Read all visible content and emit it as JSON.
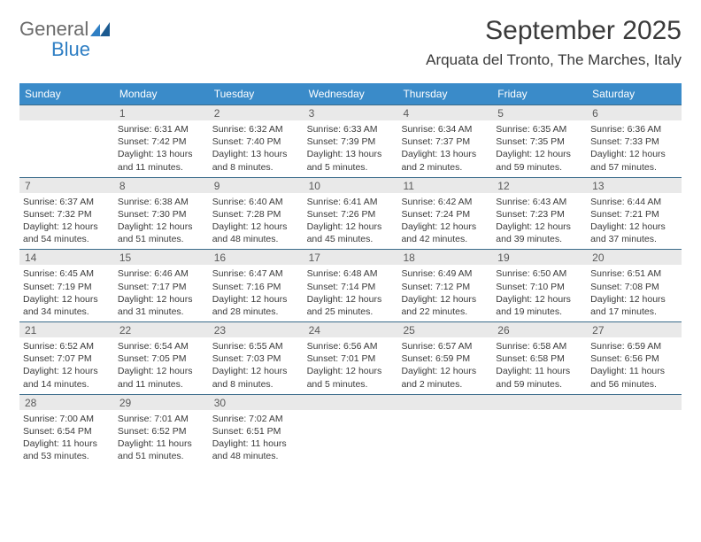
{
  "logo": {
    "line1": "General",
    "line2": "Blue"
  },
  "title": "September 2025",
  "subtitle": "Arquata del Tronto, The Marches, Italy",
  "colors": {
    "header_bg": "#3a8bc9",
    "header_text": "#ffffff",
    "daynum_bg": "#e9e9e9",
    "daynum_border": "#3a6b8a",
    "body_text": "#3a3a3a",
    "logo_gray": "#6b6b6b",
    "logo_blue": "#2f7fc4"
  },
  "dow": [
    "Sunday",
    "Monday",
    "Tuesday",
    "Wednesday",
    "Thursday",
    "Friday",
    "Saturday"
  ],
  "weeks": [
    {
      "nums": [
        "",
        "1",
        "2",
        "3",
        "4",
        "5",
        "6"
      ],
      "cells": [
        {
          "empty": true
        },
        {
          "sunrise": "Sunrise: 6:31 AM",
          "sunset": "Sunset: 7:42 PM",
          "day1": "Daylight: 13 hours",
          "day2": "and 11 minutes."
        },
        {
          "sunrise": "Sunrise: 6:32 AM",
          "sunset": "Sunset: 7:40 PM",
          "day1": "Daylight: 13 hours",
          "day2": "and 8 minutes."
        },
        {
          "sunrise": "Sunrise: 6:33 AM",
          "sunset": "Sunset: 7:39 PM",
          "day1": "Daylight: 13 hours",
          "day2": "and 5 minutes."
        },
        {
          "sunrise": "Sunrise: 6:34 AM",
          "sunset": "Sunset: 7:37 PM",
          "day1": "Daylight: 13 hours",
          "day2": "and 2 minutes."
        },
        {
          "sunrise": "Sunrise: 6:35 AM",
          "sunset": "Sunset: 7:35 PM",
          "day1": "Daylight: 12 hours",
          "day2": "and 59 minutes."
        },
        {
          "sunrise": "Sunrise: 6:36 AM",
          "sunset": "Sunset: 7:33 PM",
          "day1": "Daylight: 12 hours",
          "day2": "and 57 minutes."
        }
      ]
    },
    {
      "nums": [
        "7",
        "8",
        "9",
        "10",
        "11",
        "12",
        "13"
      ],
      "cells": [
        {
          "sunrise": "Sunrise: 6:37 AM",
          "sunset": "Sunset: 7:32 PM",
          "day1": "Daylight: 12 hours",
          "day2": "and 54 minutes."
        },
        {
          "sunrise": "Sunrise: 6:38 AM",
          "sunset": "Sunset: 7:30 PM",
          "day1": "Daylight: 12 hours",
          "day2": "and 51 minutes."
        },
        {
          "sunrise": "Sunrise: 6:40 AM",
          "sunset": "Sunset: 7:28 PM",
          "day1": "Daylight: 12 hours",
          "day2": "and 48 minutes."
        },
        {
          "sunrise": "Sunrise: 6:41 AM",
          "sunset": "Sunset: 7:26 PM",
          "day1": "Daylight: 12 hours",
          "day2": "and 45 minutes."
        },
        {
          "sunrise": "Sunrise: 6:42 AM",
          "sunset": "Sunset: 7:24 PM",
          "day1": "Daylight: 12 hours",
          "day2": "and 42 minutes."
        },
        {
          "sunrise": "Sunrise: 6:43 AM",
          "sunset": "Sunset: 7:23 PM",
          "day1": "Daylight: 12 hours",
          "day2": "and 39 minutes."
        },
        {
          "sunrise": "Sunrise: 6:44 AM",
          "sunset": "Sunset: 7:21 PM",
          "day1": "Daylight: 12 hours",
          "day2": "and 37 minutes."
        }
      ]
    },
    {
      "nums": [
        "14",
        "15",
        "16",
        "17",
        "18",
        "19",
        "20"
      ],
      "cells": [
        {
          "sunrise": "Sunrise: 6:45 AM",
          "sunset": "Sunset: 7:19 PM",
          "day1": "Daylight: 12 hours",
          "day2": "and 34 minutes."
        },
        {
          "sunrise": "Sunrise: 6:46 AM",
          "sunset": "Sunset: 7:17 PM",
          "day1": "Daylight: 12 hours",
          "day2": "and 31 minutes."
        },
        {
          "sunrise": "Sunrise: 6:47 AM",
          "sunset": "Sunset: 7:16 PM",
          "day1": "Daylight: 12 hours",
          "day2": "and 28 minutes."
        },
        {
          "sunrise": "Sunrise: 6:48 AM",
          "sunset": "Sunset: 7:14 PM",
          "day1": "Daylight: 12 hours",
          "day2": "and 25 minutes."
        },
        {
          "sunrise": "Sunrise: 6:49 AM",
          "sunset": "Sunset: 7:12 PM",
          "day1": "Daylight: 12 hours",
          "day2": "and 22 minutes."
        },
        {
          "sunrise": "Sunrise: 6:50 AM",
          "sunset": "Sunset: 7:10 PM",
          "day1": "Daylight: 12 hours",
          "day2": "and 19 minutes."
        },
        {
          "sunrise": "Sunrise: 6:51 AM",
          "sunset": "Sunset: 7:08 PM",
          "day1": "Daylight: 12 hours",
          "day2": "and 17 minutes."
        }
      ]
    },
    {
      "nums": [
        "21",
        "22",
        "23",
        "24",
        "25",
        "26",
        "27"
      ],
      "cells": [
        {
          "sunrise": "Sunrise: 6:52 AM",
          "sunset": "Sunset: 7:07 PM",
          "day1": "Daylight: 12 hours",
          "day2": "and 14 minutes."
        },
        {
          "sunrise": "Sunrise: 6:54 AM",
          "sunset": "Sunset: 7:05 PM",
          "day1": "Daylight: 12 hours",
          "day2": "and 11 minutes."
        },
        {
          "sunrise": "Sunrise: 6:55 AM",
          "sunset": "Sunset: 7:03 PM",
          "day1": "Daylight: 12 hours",
          "day2": "and 8 minutes."
        },
        {
          "sunrise": "Sunrise: 6:56 AM",
          "sunset": "Sunset: 7:01 PM",
          "day1": "Daylight: 12 hours",
          "day2": "and 5 minutes."
        },
        {
          "sunrise": "Sunrise: 6:57 AM",
          "sunset": "Sunset: 6:59 PM",
          "day1": "Daylight: 12 hours",
          "day2": "and 2 minutes."
        },
        {
          "sunrise": "Sunrise: 6:58 AM",
          "sunset": "Sunset: 6:58 PM",
          "day1": "Daylight: 11 hours",
          "day2": "and 59 minutes."
        },
        {
          "sunrise": "Sunrise: 6:59 AM",
          "sunset": "Sunset: 6:56 PM",
          "day1": "Daylight: 11 hours",
          "day2": "and 56 minutes."
        }
      ]
    },
    {
      "nums": [
        "28",
        "29",
        "30",
        "",
        "",
        "",
        ""
      ],
      "cells": [
        {
          "sunrise": "Sunrise: 7:00 AM",
          "sunset": "Sunset: 6:54 PM",
          "day1": "Daylight: 11 hours",
          "day2": "and 53 minutes."
        },
        {
          "sunrise": "Sunrise: 7:01 AM",
          "sunset": "Sunset: 6:52 PM",
          "day1": "Daylight: 11 hours",
          "day2": "and 51 minutes."
        },
        {
          "sunrise": "Sunrise: 7:02 AM",
          "sunset": "Sunset: 6:51 PM",
          "day1": "Daylight: 11 hours",
          "day2": "and 48 minutes."
        },
        {
          "empty": true
        },
        {
          "empty": true
        },
        {
          "empty": true
        },
        {
          "empty": true
        }
      ]
    }
  ]
}
